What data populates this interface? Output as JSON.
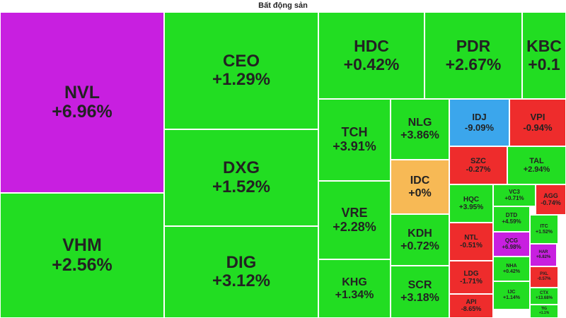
{
  "chart_data": {
    "type": "treemap",
    "title": "Bất động sản",
    "colors": {
      "up": "#22dd22",
      "down": "#ee2c2c",
      "flat": "#f7b955",
      "ceiling": "#c81fe0",
      "floor": "#3ba6ec"
    },
    "items": [
      {
        "ticker": "NVL",
        "change": "+6.96%",
        "status": "ceiling"
      },
      {
        "ticker": "VHM",
        "change": "+2.56%",
        "status": "up"
      },
      {
        "ticker": "CEO",
        "change": "+1.29%",
        "status": "up"
      },
      {
        "ticker": "DXG",
        "change": "+1.52%",
        "status": "up"
      },
      {
        "ticker": "DIG",
        "change": "+3.12%",
        "status": "up"
      },
      {
        "ticker": "HDC",
        "change": "+0.42%",
        "status": "up"
      },
      {
        "ticker": "PDR",
        "change": "+2.67%",
        "status": "up"
      },
      {
        "ticker": "KBC",
        "change": "+0.1",
        "status": "up"
      },
      {
        "ticker": "TCH",
        "change": "+3.91%",
        "status": "up"
      },
      {
        "ticker": "VRE",
        "change": "+2.28%",
        "status": "up"
      },
      {
        "ticker": "KHG",
        "change": "+1.34%",
        "status": "up"
      },
      {
        "ticker": "NLG",
        "change": "+3.86%",
        "status": "up"
      },
      {
        "ticker": "IDC",
        "change": "+0%",
        "status": "flat"
      },
      {
        "ticker": "KDH",
        "change": "+0.72%",
        "status": "up"
      },
      {
        "ticker": "SCR",
        "change": "+3.18%",
        "status": "up"
      },
      {
        "ticker": "IDJ",
        "change": "-9.09%",
        "status": "floor"
      },
      {
        "ticker": "VPI",
        "change": "-0.94%",
        "status": "down"
      },
      {
        "ticker": "SZC",
        "change": "-0.27%",
        "status": "down"
      },
      {
        "ticker": "TAL",
        "change": "+2.94%",
        "status": "up"
      },
      {
        "ticker": "HQC",
        "change": "+3.95%",
        "status": "up"
      },
      {
        "ticker": "VC3",
        "change": "+0.71%",
        "status": "up"
      },
      {
        "ticker": "AGG",
        "change": "-0.74%",
        "status": "down"
      },
      {
        "ticker": "NTL",
        "change": "-0.51%",
        "status": "down"
      },
      {
        "ticker": "DTD",
        "change": "+4.59%",
        "status": "up"
      },
      {
        "ticker": "ITC",
        "change": "+1.52%",
        "status": "up"
      },
      {
        "ticker": "QCG",
        "change": "+6.98%",
        "status": "ceiling"
      },
      {
        "ticker": "HAR",
        "change": "+6.82%",
        "status": "ceiling"
      },
      {
        "ticker": "LDG",
        "change": "-1.71%",
        "status": "down"
      },
      {
        "ticker": "NHA",
        "change": "+0.42%",
        "status": "up"
      },
      {
        "ticker": "PXL",
        "change": "-0.57%",
        "status": "down"
      },
      {
        "ticker": "API",
        "change": "-8.65%",
        "status": "down"
      },
      {
        "ticker": "IJC",
        "change": "+1.14%",
        "status": "up"
      },
      {
        "ticker": "CTX",
        "change": "+13.68%",
        "status": "up"
      },
      {
        "ticker": "TIG",
        "change": "+1.1%",
        "status": "up"
      }
    ]
  }
}
